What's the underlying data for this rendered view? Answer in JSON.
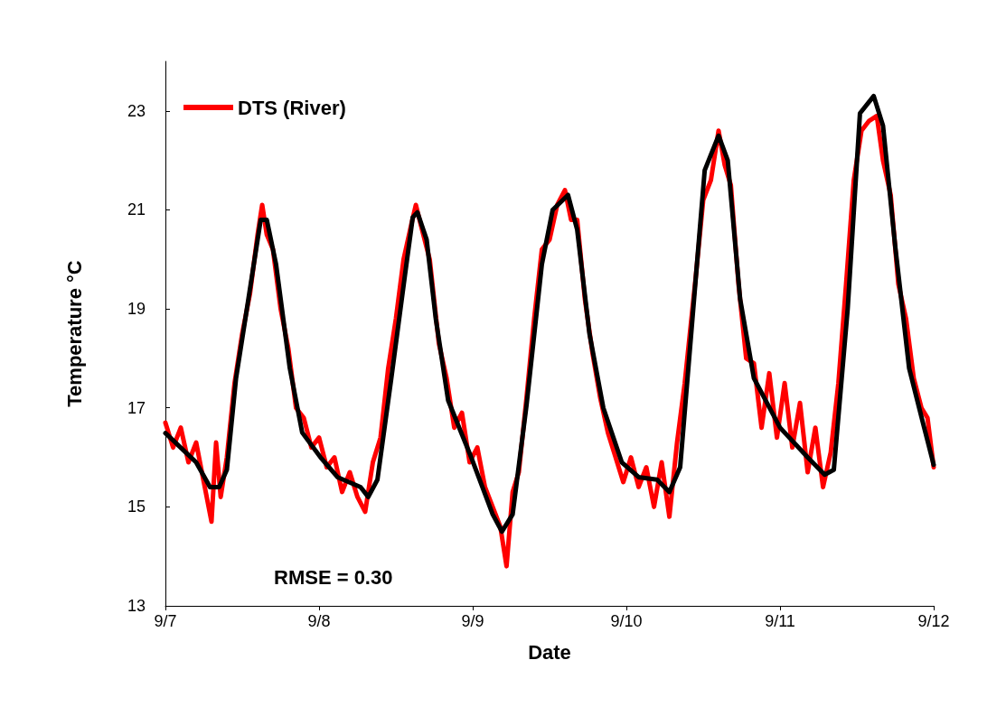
{
  "chart_data": {
    "type": "line",
    "xlabel": "Date",
    "ylabel": "Temperature °C",
    "xlim": [
      "--09-07",
      "--09-12"
    ],
    "xticks": [
      {
        "value": "--09-07",
        "label": "9/7"
      },
      {
        "value": "--09-08",
        "label": "9/8"
      },
      {
        "value": "--09-09",
        "label": "9/9"
      },
      {
        "value": "--09-10",
        "label": "9/10"
      },
      {
        "value": "--09-11",
        "label": "9/11"
      },
      {
        "value": "--09-12",
        "label": "9/12"
      }
    ],
    "ylim": [
      13,
      24
    ],
    "yticks": [
      13,
      15,
      17,
      19,
      21,
      23
    ],
    "grid": false,
    "legend": "top left",
    "marker": "none",
    "line_style": "solid",
    "annotations": [
      "RMSE = 0.30"
    ],
    "series": [
      {
        "name": "DTS (River)",
        "color": "#ff0000",
        "x": [
          "--09-07T00:00",
          "--09-07T01:12",
          "--09-07T02:24",
          "--09-07T03:36",
          "--09-07T04:48",
          "--09-07T06:00",
          "--09-07T07:12",
          "--09-07T07:55",
          "--09-07T08:38",
          "--09-07T09:36",
          "--09-07T10:48",
          "--09-07T12:00",
          "--09-07T13:12",
          "--09-07T14:24",
          "--09-07T15:07",
          "--09-07T15:50",
          "--09-07T16:48",
          "--09-07T18:00",
          "--09-07T19:12",
          "--09-07T20:24",
          "--09-07T21:36",
          "--09-07T22:48",
          "--09-08T00:00",
          "--09-08T01:12",
          "--09-08T02:24",
          "--09-08T03:36",
          "--09-08T04:48",
          "--09-08T06:00",
          "--09-08T07:12",
          "--09-08T08:24",
          "--09-08T09:36",
          "--09-08T10:48",
          "--09-08T12:00",
          "--09-08T13:12",
          "--09-08T14:24",
          "--09-08T15:07",
          "--09-08T16:05",
          "--09-08T17:17",
          "--09-08T18:43",
          "--09-08T19:55",
          "--09-08T21:07",
          "--09-08T22:19",
          "--09-08T23:31",
          "--09-09T00:43",
          "--09-09T01:55",
          "--09-09T03:07",
          "--09-09T04:19",
          "--09-09T05:17",
          "--09-09T06:14",
          "--09-09T07:12",
          "--09-09T08:24",
          "--09-09T09:36",
          "--09-09T10:48",
          "--09-09T12:00",
          "--09-09T13:12",
          "--09-09T14:24",
          "--09-09T15:22",
          "--09-09T16:19",
          "--09-09T17:31",
          "--09-09T18:43",
          "--09-09T19:55",
          "--09-09T21:07",
          "--09-09T22:19",
          "--09-09T23:31",
          "--09-10T00:43",
          "--09-10T01:55",
          "--09-10T03:07",
          "--09-10T04:19",
          "--09-10T05:31",
          "--09-10T06:43",
          "--09-10T07:55",
          "--09-10T09:07",
          "--09-10T10:48",
          "--09-10T12:00",
          "--09-10T13:12",
          "--09-10T14:24",
          "--09-10T15:22",
          "--09-10T16:19",
          "--09-10T17:31",
          "--09-10T18:43",
          "--09-10T19:55",
          "--09-10T21:07",
          "--09-10T22:19",
          "--09-10T23:31",
          "--09-11T00:43",
          "--09-11T01:55",
          "--09-11T03:07",
          "--09-11T04:19",
          "--09-11T05:31",
          "--09-11T06:43",
          "--09-11T07:55",
          "--09-11T09:07",
          "--09-11T10:19",
          "--09-11T11:31",
          "--09-11T12:43",
          "--09-11T13:55",
          "--09-11T15:07",
          "--09-11T16:05",
          "--09-11T17:17",
          "--09-11T18:29",
          "--09-11T19:41",
          "--09-11T20:53",
          "--09-11T22:05",
          "--09-11T23:02",
          "--09-12T00:00"
        ],
        "values": [
          16.7,
          16.2,
          16.6,
          15.9,
          16.3,
          15.5,
          14.7,
          16.3,
          15.2,
          16.0,
          17.5,
          18.5,
          19.3,
          20.5,
          21.1,
          20.5,
          20.2,
          19.0,
          18.2,
          17.0,
          16.8,
          16.2,
          16.4,
          15.8,
          16.0,
          15.3,
          15.7,
          15.2,
          14.9,
          15.9,
          16.4,
          17.8,
          18.8,
          20.0,
          20.7,
          21.1,
          20.6,
          20.0,
          18.3,
          17.6,
          16.6,
          16.9,
          15.9,
          16.2,
          15.4,
          15.0,
          14.6,
          13.8,
          15.3,
          15.7,
          17.2,
          18.8,
          20.2,
          20.4,
          21.1,
          21.4,
          20.8,
          20.8,
          19.2,
          18.1,
          17.2,
          16.5,
          16.0,
          15.5,
          16.0,
          15.4,
          15.8,
          15.0,
          15.9,
          14.8,
          16.3,
          17.5,
          19.6,
          21.2,
          21.6,
          22.6,
          21.9,
          21.5,
          19.5,
          18.0,
          17.9,
          16.6,
          17.7,
          16.4,
          17.5,
          16.2,
          17.1,
          15.7,
          16.6,
          15.4,
          16.1,
          17.5,
          19.5,
          21.6,
          22.6,
          22.8,
          22.9,
          22.0,
          21.3,
          19.5,
          18.8,
          17.6,
          17.0,
          16.8,
          15.8
        ]
      },
      {
        "color": "#000000",
        "x": [
          "--09-07T00:00",
          "--09-07T04:48",
          "--09-07T06:58",
          "--09-07T08:24",
          "--09-07T09:36",
          "--09-07T11:02",
          "--09-07T12:58",
          "--09-07T14:53",
          "--09-07T15:50",
          "--09-07T17:17",
          "--09-07T19:26",
          "--09-07T21:22",
          "--09-08T00:14",
          "--09-08T02:53",
          "--09-08T06:29",
          "--09-08T07:41",
          "--09-08T09:07",
          "--09-08T11:17",
          "--09-08T13:26",
          "--09-08T14:38",
          "--09-08T15:22",
          "--09-08T16:48",
          "--09-08T18:14",
          "--09-08T20:10",
          "--09-08T23:46",
          "--09-09T03:07",
          "--09-09T04:34",
          "--09-09T06:14",
          "--09-09T08:24",
          "--09-09T10:48",
          "--09-09T12:29",
          "--09-09T14:53",
          "--09-09T16:19",
          "--09-09T18:14",
          "--09-09T20:24",
          "--09-09T23:17",
          "--09-10T01:55",
          "--09-10T04:48",
          "--09-10T06:43",
          "--09-10T08:24",
          "--09-10T10:19",
          "--09-10T12:14",
          "--09-10T14:24",
          "--09-10T15:50",
          "--09-10T17:46",
          "--09-10T19:55",
          "--09-11T00:00",
          "--09-11T04:19",
          "--09-11T06:58",
          "--09-11T08:24",
          "--09-11T10:34",
          "--09-11T12:29",
          "--09-11T14:38",
          "--09-11T16:05",
          "--09-11T18:00",
          "--09-11T20:10",
          "--09-11T22:19",
          "--09-12T00:00"
        ],
        "values": [
          16.49,
          15.9,
          15.4,
          15.4,
          15.75,
          17.6,
          19.2,
          20.8,
          20.8,
          19.9,
          17.8,
          16.5,
          16.0,
          15.6,
          15.4,
          15.2,
          15.55,
          17.6,
          19.7,
          20.85,
          20.95,
          20.4,
          18.8,
          17.15,
          16.0,
          14.85,
          14.5,
          14.85,
          17.05,
          19.9,
          21.0,
          21.3,
          20.6,
          18.5,
          17.0,
          15.9,
          15.6,
          15.55,
          15.3,
          15.8,
          18.8,
          21.8,
          22.5,
          22.0,
          19.2,
          17.6,
          16.6,
          16.0,
          15.65,
          15.75,
          19.0,
          22.95,
          23.3,
          22.7,
          20.25,
          17.8,
          16.7,
          15.85
        ]
      }
    ]
  }
}
